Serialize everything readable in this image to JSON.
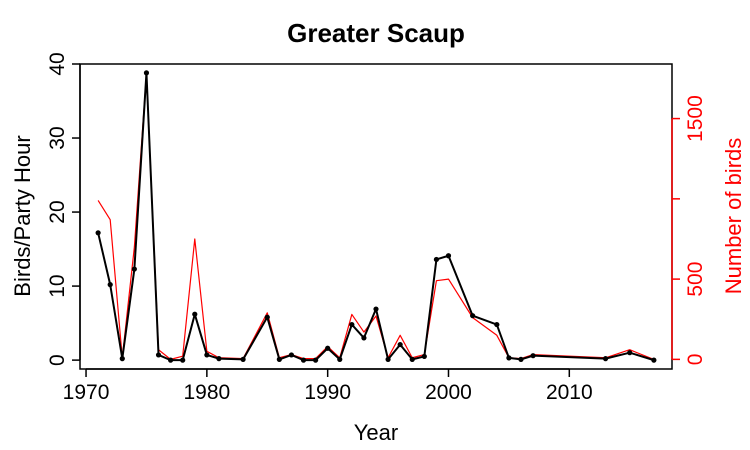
{
  "chart_data": {
    "type": "line",
    "title": "Greater Scaup",
    "xlabel": "Year",
    "ylabel": "Birds/Party Hour",
    "ylabel_right": "Number of birds",
    "xlim": [
      1969.5,
      2018.5
    ],
    "ylim": [
      -1.2,
      40
    ],
    "ylim_right": [
      -60,
      1840
    ],
    "x_ticks": [
      1970,
      1980,
      1990,
      2000,
      2010
    ],
    "y_ticks": [
      0,
      10,
      20,
      30,
      40
    ],
    "y_ticks_right": [
      0,
      500,
      1000,
      1500
    ],
    "y_tick_labels_right": [
      "0",
      "500",
      "",
      "1500"
    ],
    "grid": false,
    "colors": {
      "birds_per_party_hour": "#000000",
      "number_of_birds": "#ff0000"
    },
    "series": [
      {
        "axis": "left",
        "values": [
          [
            1971,
            17.2
          ],
          [
            1972,
            10.2
          ],
          [
            1973,
            0.2
          ],
          [
            1974,
            12.3
          ],
          [
            1975,
            38.8
          ],
          [
            1976,
            0.7
          ],
          [
            1977,
            0.0
          ],
          [
            1978,
            0.0
          ],
          [
            1979,
            6.2
          ],
          [
            1980,
            0.7
          ],
          [
            1981,
            0.2
          ],
          [
            1983,
            0.1
          ],
          [
            1985,
            5.8
          ],
          [
            1986,
            0.1
          ],
          [
            1987,
            0.7
          ],
          [
            1988,
            0.0
          ],
          [
            1989,
            0.0
          ],
          [
            1990,
            1.6
          ],
          [
            1991,
            0.1
          ],
          [
            1992,
            4.8
          ],
          [
            1993,
            3.0
          ],
          [
            1994,
            6.9
          ],
          [
            1995,
            0.1
          ],
          [
            1996,
            2.1
          ],
          [
            1997,
            0.1
          ],
          [
            1998,
            0.5
          ],
          [
            1999,
            13.6
          ],
          [
            2000,
            14.1
          ],
          [
            2002,
            6.0
          ],
          [
            2004,
            4.8
          ],
          [
            2005,
            0.3
          ],
          [
            2006,
            0.1
          ],
          [
            2007,
            0.6
          ],
          [
            2013,
            0.2
          ],
          [
            2015,
            1.0
          ],
          [
            2017,
            0.0
          ]
        ]
      },
      {
        "axis": "right",
        "values": [
          [
            1971,
            990
          ],
          [
            1972,
            870
          ],
          [
            1973,
            10
          ],
          [
            1974,
            700
          ],
          [
            1975,
            1780
          ],
          [
            1976,
            60
          ],
          [
            1977,
            0
          ],
          [
            1978,
            20
          ],
          [
            1979,
            750
          ],
          [
            1980,
            50
          ],
          [
            1981,
            10
          ],
          [
            1983,
            5
          ],
          [
            1985,
            290
          ],
          [
            1986,
            10
          ],
          [
            1987,
            30
          ],
          [
            1988,
            5
          ],
          [
            1989,
            5
          ],
          [
            1990,
            80
          ],
          [
            1991,
            10
          ],
          [
            1992,
            280
          ],
          [
            1993,
            170
          ],
          [
            1994,
            270
          ],
          [
            1995,
            10
          ],
          [
            1996,
            150
          ],
          [
            1997,
            10
          ],
          [
            1998,
            30
          ],
          [
            1999,
            490
          ],
          [
            2000,
            500
          ],
          [
            2002,
            260
          ],
          [
            2004,
            150
          ],
          [
            2005,
            10
          ],
          [
            2006,
            5
          ],
          [
            2007,
            30
          ],
          [
            2013,
            10
          ],
          [
            2015,
            60
          ],
          [
            2017,
            0
          ]
        ]
      }
    ]
  }
}
